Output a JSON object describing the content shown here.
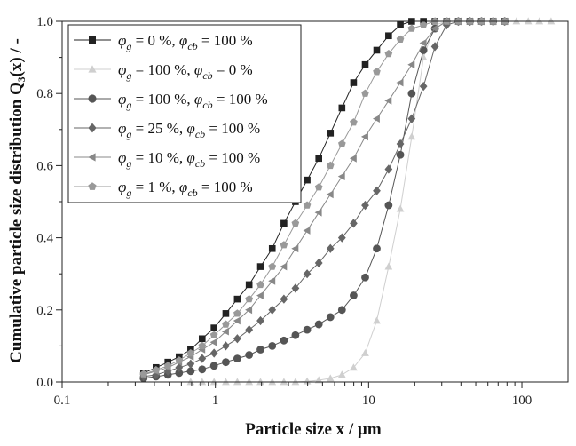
{
  "chart_data": {
    "type": "line",
    "xlabel": "Particle size x / µm",
    "ylabel": "Cumulative particle size distribution Q₃(x) / -",
    "xscale": "log",
    "xlim": [
      0.1,
      200
    ],
    "ylim": [
      0,
      1.0
    ],
    "x_ticks": [
      0.1,
      1,
      10,
      100
    ],
    "x_tick_labels": [
      "0.1",
      "1",
      "10",
      "100"
    ],
    "y_ticks": [
      0,
      0.2,
      0.4,
      0.6,
      0.8,
      1.0
    ],
    "y_tick_labels": [
      "0.0",
      "0.2",
      "0.4",
      "0.6",
      "0.8",
      "1.0"
    ],
    "grid": false,
    "legend_position": "top-left",
    "x": [
      0.34,
      0.41,
      0.49,
      0.58,
      0.69,
      0.82,
      0.98,
      1.17,
      1.39,
      1.66,
      1.97,
      2.35,
      2.8,
      3.33,
      3.97,
      4.73,
      5.63,
      6.7,
      7.98,
      9.5,
      11.3,
      13.5,
      16.1,
      19.1,
      22.8,
      27.1,
      32.3,
      38.5,
      45.8,
      54.5,
      65.0,
      77.3,
      92.1,
      110,
      130,
      155
    ],
    "series": [
      {
        "name": "φg = 0 %, φcb = 100 %",
        "color": "#222222",
        "marker": "square",
        "values": [
          0.025,
          0.04,
          0.055,
          0.07,
          0.09,
          0.12,
          0.15,
          0.19,
          0.23,
          0.27,
          0.32,
          0.37,
          0.44,
          0.5,
          0.56,
          0.62,
          0.69,
          0.76,
          0.83,
          0.88,
          0.92,
          0.96,
          0.99,
          1.0,
          1.0,
          1.0,
          1.0,
          1.0,
          1.0,
          1.0,
          1.0,
          1.0,
          null,
          null,
          null,
          null
        ]
      },
      {
        "name": "φg = 100 %, φcb = 0 %",
        "color": "#cfcfcf",
        "marker": "triangle-up",
        "values": [
          null,
          null,
          null,
          null,
          0.0,
          0.0,
          0.0,
          0.0,
          0.0,
          0.0,
          0.0,
          0.0,
          0.0,
          0.0,
          0.002,
          0.005,
          0.01,
          0.02,
          0.04,
          0.08,
          0.17,
          0.32,
          0.48,
          0.68,
          0.9,
          0.99,
          1.0,
          1.0,
          1.0,
          1.0,
          1.0,
          1.0,
          1.0,
          1.0,
          1.0,
          1.0
        ]
      },
      {
        "name": "φg = 100 %, φcb = 100 %",
        "color": "#555555",
        "marker": "circle",
        "values": [
          0.01,
          0.015,
          0.02,
          0.025,
          0.03,
          0.035,
          0.045,
          0.055,
          0.065,
          0.075,
          0.09,
          0.1,
          0.115,
          0.13,
          0.145,
          0.16,
          0.18,
          0.2,
          0.24,
          0.29,
          0.37,
          0.49,
          0.63,
          0.8,
          0.92,
          0.98,
          1.0,
          1.0,
          1.0,
          1.0,
          1.0,
          1.0,
          null,
          null,
          null,
          null
        ]
      },
      {
        "name": "φg = 25 %, φcb = 100 %",
        "color": "#666666",
        "marker": "diamond",
        "values": [
          0.015,
          0.02,
          0.03,
          0.04,
          0.05,
          0.065,
          0.08,
          0.1,
          0.12,
          0.145,
          0.17,
          0.2,
          0.23,
          0.26,
          0.3,
          0.33,
          0.37,
          0.4,
          0.44,
          0.49,
          0.53,
          0.59,
          0.66,
          0.73,
          0.82,
          0.93,
          0.99,
          1.0,
          1.0,
          1.0,
          1.0,
          1.0,
          null,
          null,
          null,
          null
        ]
      },
      {
        "name": "φg = 10 %, φcb = 100 %",
        "color": "#888888",
        "marker": "triangle-left",
        "values": [
          0.02,
          0.03,
          0.04,
          0.055,
          0.07,
          0.09,
          0.11,
          0.14,
          0.17,
          0.2,
          0.24,
          0.28,
          0.32,
          0.37,
          0.42,
          0.47,
          0.52,
          0.57,
          0.62,
          0.68,
          0.73,
          0.78,
          0.83,
          0.88,
          0.94,
          0.98,
          1.0,
          1.0,
          1.0,
          1.0,
          1.0,
          1.0,
          null,
          null,
          null,
          null
        ]
      },
      {
        "name": "φg = 1 %, φcb = 100 %",
        "color": "#999999",
        "marker": "pentagon",
        "values": [
          0.022,
          0.033,
          0.045,
          0.06,
          0.08,
          0.1,
          0.13,
          0.16,
          0.19,
          0.23,
          0.27,
          0.32,
          0.38,
          0.44,
          0.49,
          0.54,
          0.6,
          0.66,
          0.72,
          0.8,
          0.86,
          0.91,
          0.95,
          0.98,
          0.99,
          1.0,
          1.0,
          1.0,
          1.0,
          1.0,
          1.0,
          1.0,
          null,
          null,
          null,
          null
        ]
      }
    ]
  }
}
